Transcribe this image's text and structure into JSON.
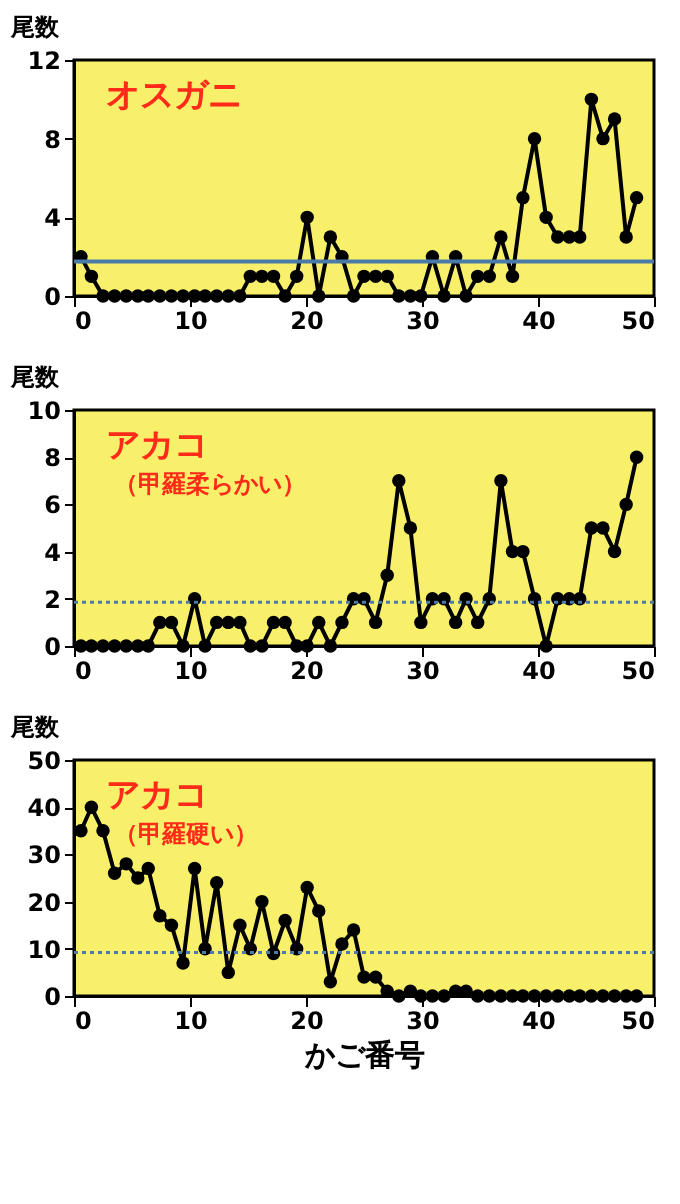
{
  "chart_data": [
    {
      "type": "line",
      "ylabel": "尾数",
      "annotations": [
        "オスガニ"
      ],
      "x": [
        0.6,
        1.5,
        2.5,
        3.5,
        4.5,
        5.5,
        6.4,
        7.4,
        8.4,
        9.4,
        10.4,
        11.3,
        12.3,
        13.3,
        14.3,
        15.2,
        16.2,
        17.2,
        18.2,
        19.2,
        20.1,
        21.1,
        22.1,
        23.1,
        24.1,
        25.0,
        26.0,
        27.0,
        28.0,
        29.0,
        29.9,
        30.9,
        31.9,
        32.9,
        33.8,
        34.8,
        35.8,
        36.8,
        37.8,
        38.7,
        39.7,
        40.7,
        41.7,
        42.7,
        43.6,
        44.6,
        45.6,
        46.6,
        47.6,
        48.5
      ],
      "series": [
        {
          "color": "#000000",
          "values": [
            2,
            1,
            0,
            0,
            0,
            0,
            0,
            0,
            0,
            0,
            0,
            0,
            0,
            0,
            0,
            1,
            1,
            1,
            0,
            1,
            4,
            0,
            3,
            2,
            0,
            1,
            1,
            1,
            0,
            0,
            0,
            2,
            0,
            2,
            0,
            1,
            1,
            3,
            1,
            5,
            8,
            4,
            3,
            3,
            3,
            10,
            8,
            9,
            3,
            5
          ]
        }
      ],
      "xlim": [
        0,
        50
      ],
      "xticks": [
        0,
        10,
        20,
        30,
        40,
        50
      ],
      "ylim": [
        0,
        12
      ],
      "yticks": [
        0,
        4,
        8,
        12
      ],
      "marker": "circle",
      "line_style": "solid",
      "ref_lines": [
        {
          "axis": "y",
          "value": 1.75,
          "color": "#4a7aa8",
          "line_style": "solid"
        }
      ]
    },
    {
      "type": "line",
      "ylabel": "尾数",
      "annotations": [
        "アカコ",
        "（甲羅柔らかい）"
      ],
      "x": [
        0.6,
        1.5,
        2.5,
        3.5,
        4.5,
        5.5,
        6.4,
        7.4,
        8.4,
        9.4,
        10.4,
        11.3,
        12.3,
        13.3,
        14.3,
        15.2,
        16.2,
        17.2,
        18.2,
        19.2,
        20.1,
        21.1,
        22.1,
        23.1,
        24.1,
        25.0,
        26.0,
        27.0,
        28.0,
        29.0,
        29.9,
        30.9,
        31.9,
        32.9,
        33.8,
        34.8,
        35.8,
        36.8,
        37.8,
        38.7,
        39.7,
        40.7,
        41.7,
        42.7,
        43.6,
        44.6,
        45.6,
        46.6,
        47.6,
        48.5
      ],
      "series": [
        {
          "color": "#000000",
          "values": [
            0,
            0,
            0,
            0,
            0,
            0,
            0,
            1,
            1,
            0,
            2,
            0,
            1,
            1,
            1,
            0,
            0,
            1,
            1,
            0,
            0,
            1,
            0,
            1,
            2,
            2,
            1,
            3,
            7,
            5,
            1,
            2,
            2,
            1,
            2,
            1,
            2,
            7,
            4,
            4,
            2,
            0,
            2,
            2,
            2,
            5,
            5,
            4,
            6,
            8
          ]
        }
      ],
      "xlim": [
        0,
        50
      ],
      "xticks": [
        0,
        10,
        20,
        30,
        40,
        50
      ],
      "ylim": [
        0,
        10
      ],
      "yticks": [
        0,
        2,
        4,
        6,
        8,
        10
      ],
      "marker": "circle",
      "line_style": "solid",
      "ref_lines": [
        {
          "axis": "y",
          "value": 1.85,
          "color": "#4a7aa8",
          "line_style": "dotted"
        }
      ]
    },
    {
      "type": "line",
      "xlabel": "かご番号",
      "ylabel": "尾数",
      "annotations": [
        "アカコ",
        "（甲羅硬い）"
      ],
      "x": [
        0.6,
        1.5,
        2.5,
        3.5,
        4.5,
        5.5,
        6.4,
        7.4,
        8.4,
        9.4,
        10.4,
        11.3,
        12.3,
        13.3,
        14.3,
        15.2,
        16.2,
        17.2,
        18.2,
        19.2,
        20.1,
        21.1,
        22.1,
        23.1,
        24.1,
        25.0,
        26.0,
        27.0,
        28.0,
        29.0,
        29.9,
        30.9,
        31.9,
        32.9,
        33.8,
        34.8,
        35.8,
        36.8,
        37.8,
        38.7,
        39.7,
        40.7,
        41.7,
        42.7,
        43.6,
        44.6,
        45.6,
        46.6,
        47.6,
        48.5
      ],
      "series": [
        {
          "color": "#000000",
          "values": [
            35,
            40,
            35,
            26,
            28,
            25,
            27,
            17,
            15,
            7,
            27,
            10,
            24,
            5,
            15,
            10,
            20,
            9,
            16,
            10,
            23,
            18,
            3,
            11,
            14,
            4,
            4,
            1,
            0,
            1,
            0,
            0,
            0,
            1,
            1,
            0,
            0,
            0,
            0,
            0,
            0,
            0,
            0,
            0,
            0,
            0,
            0,
            0,
            0,
            0
          ]
        }
      ],
      "xlim": [
        0,
        50
      ],
      "xticks": [
        0,
        10,
        20,
        30,
        40,
        50
      ],
      "ylim": [
        0,
        50
      ],
      "yticks": [
        0,
        10,
        20,
        30,
        40,
        50
      ],
      "marker": "circle",
      "line_style": "solid",
      "ref_lines": [
        {
          "axis": "y",
          "value": 9.2,
          "color": "#4a7aa8",
          "line_style": "dotted"
        }
      ]
    }
  ]
}
